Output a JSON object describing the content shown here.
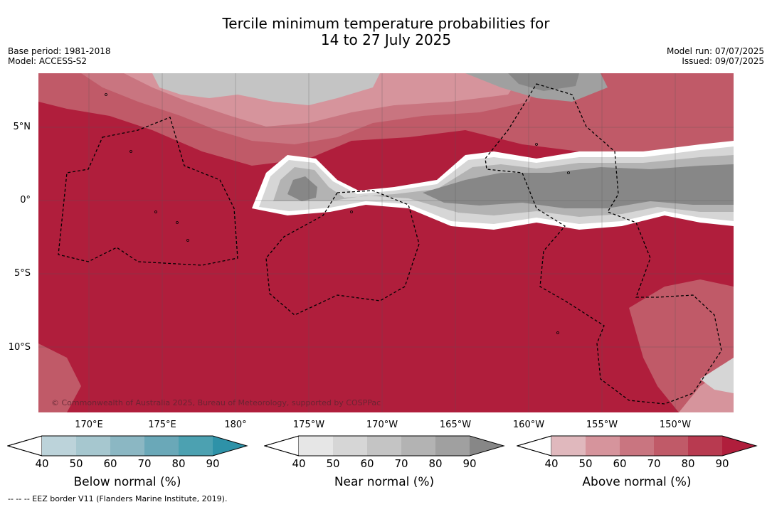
{
  "title_line1": "Tercile minimum temperature probabilities for",
  "title_line2": "14 to 27 July 2025",
  "base_period": "Base period: 1981-2018",
  "model": "Model: ACCESS-S2",
  "model_run": "Model run: 07/07/2025",
  "issued": "Issued: 09/07/2025",
  "copyright": "© Commonwealth of Australia 2025, Bureau of Meteorology, supported by COSPPac",
  "lat_labels": [
    "5°N",
    "0°",
    "5°S",
    "10°S"
  ],
  "lon_labels": [
    "170°E",
    "175°E",
    "180°",
    "175°W",
    "170°W",
    "165°W",
    "160°W",
    "155°W",
    "150°W"
  ],
  "colorbars": [
    {
      "label": "Below normal (%)",
      "ticks": [
        "40",
        "50",
        "60",
        "70",
        "80",
        "90"
      ],
      "colors": [
        "#bcd3da",
        "#a6c7cf",
        "#8bb7c3",
        "#6aa8b8",
        "#4ca1b1",
        "#2e92a8"
      ]
    },
    {
      "label": "Near normal (%)",
      "ticks": [
        "40",
        "50",
        "60",
        "70",
        "80",
        "90"
      ],
      "colors": [
        "#e6e6e6",
        "#d6d6d6",
        "#c4c4c4",
        "#b3b3b3",
        "#a0a0a0",
        "#878787"
      ]
    },
    {
      "label": "Above normal (%)",
      "ticks": [
        "40",
        "50",
        "60",
        "70",
        "80",
        "90"
      ],
      "colors": [
        "#e0b8bd",
        "#d6949c",
        "#c97580",
        "#c05a68",
        "#b83a50",
        "#b01e3c"
      ]
    }
  ],
  "footer": "--  --  -- EEZ border V11 (Flanders Marine Institute, 2019)."
}
